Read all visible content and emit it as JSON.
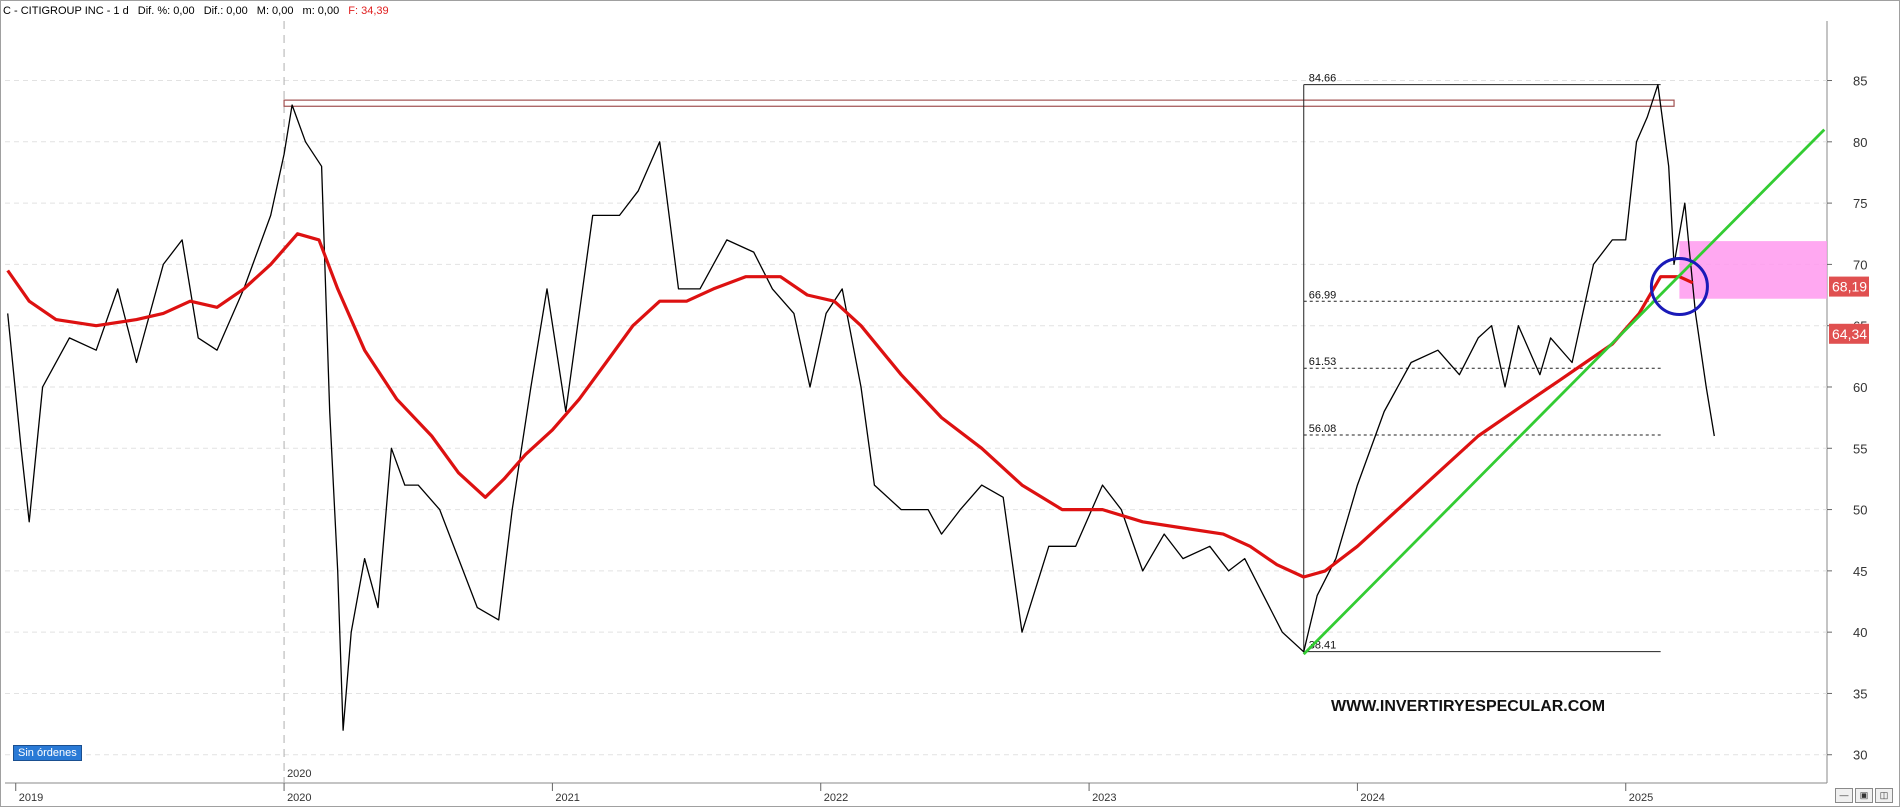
{
  "header": {
    "title": "C - CITIGROUP INC - 1 d",
    "stats": [
      "Dif. %: 0,00",
      "Dif.: 0,00",
      "M: 0,00",
      "m: 0,00"
    ],
    "last": "F: 34,39"
  },
  "colors": {
    "price": "#000000",
    "ma": "#dd1111",
    "trendline": "#33cc33",
    "resistance_box": "#a05050",
    "pink_zone": "#ff99ee",
    "circle": "#1a1ab8",
    "tag_bg": "#e05050"
  },
  "orders_badge": "Sin órdenes",
  "watermark": "WWW.INVERTIRYESPECULAR.COM",
  "scroll_icons": [
    "minimize-icon",
    "save-icon",
    "split-icon"
  ],
  "chart_data": {
    "type": "line",
    "title": "",
    "xlabel": "",
    "ylabel": "",
    "ylim": [
      29,
      87
    ],
    "xlim": [
      2018.96,
      2025.75
    ],
    "ytick_values": [
      30,
      35,
      40,
      45,
      50,
      55,
      60,
      65,
      70,
      75,
      80,
      85
    ],
    "ytick_labels": [
      "30",
      "35",
      "40",
      "45",
      "50",
      "55",
      "60",
      "65",
      "70",
      "75",
      "80",
      "85"
    ],
    "xticks": [
      {
        "x": 2019.0,
        "label": "2019"
      },
      {
        "x": 2020.0,
        "label": "2020"
      },
      {
        "x": 2021.0,
        "label": "2021"
      },
      {
        "x": 2022.0,
        "label": "2022"
      },
      {
        "x": 2023.0,
        "label": "2023"
      },
      {
        "x": 2024.0,
        "label": "2024"
      },
      {
        "x": 2025.0,
        "label": "2025"
      }
    ],
    "marker_label": "2020",
    "grid": true,
    "series": [
      {
        "points": [
          [
            2018.97,
            66
          ],
          [
            2019.02,
            55
          ],
          [
            2019.05,
            49
          ],
          [
            2019.1,
            60
          ],
          [
            2019.2,
            64
          ],
          [
            2019.3,
            63
          ],
          [
            2019.38,
            68
          ],
          [
            2019.45,
            62
          ],
          [
            2019.55,
            70
          ],
          [
            2019.62,
            72
          ],
          [
            2019.68,
            64
          ],
          [
            2019.75,
            63
          ],
          [
            2019.85,
            68
          ],
          [
            2019.95,
            74
          ],
          [
            2020.0,
            79
          ],
          [
            2020.03,
            83
          ],
          [
            2020.08,
            80
          ],
          [
            2020.14,
            78
          ],
          [
            2020.17,
            58
          ],
          [
            2020.2,
            45
          ],
          [
            2020.22,
            32
          ],
          [
            2020.25,
            40
          ],
          [
            2020.3,
            46
          ],
          [
            2020.35,
            42
          ],
          [
            2020.4,
            55
          ],
          [
            2020.45,
            52
          ],
          [
            2020.5,
            52
          ],
          [
            2020.58,
            50
          ],
          [
            2020.65,
            46
          ],
          [
            2020.72,
            42
          ],
          [
            2020.8,
            41
          ],
          [
            2020.85,
            50
          ],
          [
            2020.92,
            60
          ],
          [
            2020.98,
            68
          ],
          [
            2021.05,
            58
          ],
          [
            2021.15,
            74
          ],
          [
            2021.25,
            74
          ],
          [
            2021.32,
            76
          ],
          [
            2021.4,
            80
          ],
          [
            2021.47,
            68
          ],
          [
            2021.55,
            68
          ],
          [
            2021.65,
            72
          ],
          [
            2021.75,
            71
          ],
          [
            2021.82,
            68
          ],
          [
            2021.9,
            66
          ],
          [
            2021.96,
            60
          ],
          [
            2022.02,
            66
          ],
          [
            2022.08,
            68
          ],
          [
            2022.15,
            60
          ],
          [
            2022.2,
            52
          ],
          [
            2022.3,
            50
          ],
          [
            2022.4,
            50
          ],
          [
            2022.45,
            48
          ],
          [
            2022.52,
            50
          ],
          [
            2022.6,
            52
          ],
          [
            2022.68,
            51
          ],
          [
            2022.75,
            40
          ],
          [
            2022.85,
            47
          ],
          [
            2022.95,
            47
          ],
          [
            2023.05,
            52
          ],
          [
            2023.12,
            50
          ],
          [
            2023.2,
            45
          ],
          [
            2023.28,
            48
          ],
          [
            2023.35,
            46
          ],
          [
            2023.45,
            47
          ],
          [
            2023.52,
            45
          ],
          [
            2023.58,
            46
          ],
          [
            2023.65,
            43
          ],
          [
            2023.72,
            40
          ],
          [
            2023.8,
            38.4
          ],
          [
            2023.85,
            43
          ],
          [
            2023.92,
            46
          ],
          [
            2024.0,
            52
          ],
          [
            2024.1,
            58
          ],
          [
            2024.2,
            62
          ],
          [
            2024.3,
            63
          ],
          [
            2024.38,
            61
          ],
          [
            2024.45,
            64
          ],
          [
            2024.5,
            65
          ],
          [
            2024.55,
            60
          ],
          [
            2024.6,
            65
          ],
          [
            2024.68,
            61
          ],
          [
            2024.72,
            64
          ],
          [
            2024.8,
            62
          ],
          [
            2024.88,
            70
          ],
          [
            2024.95,
            72
          ],
          [
            2025.0,
            72
          ],
          [
            2025.04,
            80
          ],
          [
            2025.08,
            82
          ],
          [
            2025.12,
            84.66
          ],
          [
            2025.16,
            78
          ],
          [
            2025.18,
            70
          ],
          [
            2025.22,
            75
          ],
          [
            2025.26,
            66
          ],
          [
            2025.3,
            60
          ],
          [
            2025.33,
            56
          ]
        ]
      },
      {
        "points": [
          [
            2018.97,
            69.5
          ],
          [
            2019.05,
            67
          ],
          [
            2019.15,
            65.5
          ],
          [
            2019.3,
            65
          ],
          [
            2019.45,
            65.5
          ],
          [
            2019.55,
            66
          ],
          [
            2019.65,
            67
          ],
          [
            2019.75,
            66.5
          ],
          [
            2019.85,
            68
          ],
          [
            2019.95,
            70
          ],
          [
            2020.05,
            72.5
          ],
          [
            2020.13,
            72
          ],
          [
            2020.2,
            68
          ],
          [
            2020.3,
            63
          ],
          [
            2020.42,
            59
          ],
          [
            2020.55,
            56
          ],
          [
            2020.65,
            53
          ],
          [
            2020.75,
            51
          ],
          [
            2020.82,
            52.5
          ],
          [
            2020.9,
            54.5
          ],
          [
            2021.0,
            56.5
          ],
          [
            2021.1,
            59
          ],
          [
            2021.2,
            62
          ],
          [
            2021.3,
            65
          ],
          [
            2021.4,
            67
          ],
          [
            2021.5,
            67
          ],
          [
            2021.6,
            68
          ],
          [
            2021.72,
            69
          ],
          [
            2021.85,
            69
          ],
          [
            2021.95,
            67.5
          ],
          [
            2022.05,
            67
          ],
          [
            2022.15,
            65
          ],
          [
            2022.3,
            61
          ],
          [
            2022.45,
            57.5
          ],
          [
            2022.6,
            55
          ],
          [
            2022.75,
            52
          ],
          [
            2022.9,
            50
          ],
          [
            2023.05,
            50
          ],
          [
            2023.2,
            49
          ],
          [
            2023.35,
            48.5
          ],
          [
            2023.5,
            48
          ],
          [
            2023.6,
            47
          ],
          [
            2023.7,
            45.5
          ],
          [
            2023.8,
            44.5
          ],
          [
            2023.88,
            45
          ],
          [
            2024.0,
            47
          ],
          [
            2024.15,
            50
          ],
          [
            2024.3,
            53
          ],
          [
            2024.45,
            56
          ],
          [
            2024.55,
            57.5
          ],
          [
            2024.65,
            59
          ],
          [
            2024.75,
            60.5
          ],
          [
            2024.85,
            62
          ],
          [
            2024.95,
            63.5
          ],
          [
            2025.05,
            66
          ],
          [
            2025.13,
            69
          ],
          [
            2025.2,
            69
          ],
          [
            2025.25,
            68.5
          ]
        ]
      },
      {
        "points": [
          [
            2023.8,
            38.2
          ],
          [
            2025.74,
            81
          ]
        ]
      }
    ],
    "annotations": {
      "fib_levels": [
        {
          "value": 84.66,
          "label": "84.66"
        },
        {
          "value": 66.99,
          "label": "66.99"
        },
        {
          "value": 61.53,
          "label": "61.53"
        },
        {
          "value": 56.08,
          "label": "56.08"
        },
        {
          "value": 38.41,
          "label": "38.41"
        }
      ],
      "fib_x_range": [
        2023.8,
        2025.13
      ],
      "resistance_zone": {
        "x1": 2020.0,
        "x2": 2025.18,
        "y1": 82.9,
        "y2": 83.4
      },
      "pink_zone": {
        "x1": 2025.2,
        "x2": 2025.75,
        "y1": 67.2,
        "y2": 71.9
      },
      "circle_center": {
        "x": 2025.2,
        "y": 68.2
      },
      "price_tags": [
        {
          "value": 68.19,
          "label": "68,19"
        },
        {
          "value": 64.34,
          "label": "64,34"
        }
      ]
    }
  }
}
